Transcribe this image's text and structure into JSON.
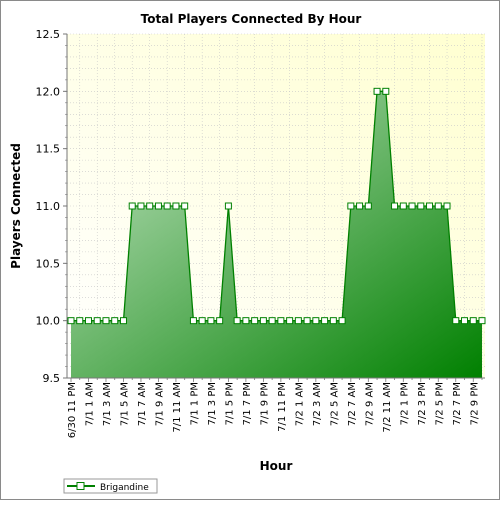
{
  "chart_data": {
    "type": "area",
    "title": "Total Players Connected By Hour",
    "xlabel": "Hour",
    "ylabel": "Players Connected",
    "ylim": [
      9.5,
      12.5
    ],
    "yticks": [
      "9.5",
      "10.0",
      "10.5",
      "11.0",
      "11.5",
      "12.0",
      "12.5"
    ],
    "grid": true,
    "legend_position": "bottom-left",
    "x_tick_labels": [
      "6/30 11 PM",
      "7/1 1 AM",
      "7/1 3 AM",
      "7/1 5 AM",
      "7/1 7 AM",
      "7/1 9 AM",
      "7/1 11 AM",
      "7/1 1 PM",
      "7/1 3 PM",
      "7/1 5 PM",
      "7/1 7 PM",
      "7/1 9 PM",
      "7/1 11 PM",
      "7/2 1 AM",
      "7/2 3 AM",
      "7/2 5 AM",
      "7/2 7 AM",
      "7/2 9 AM",
      "7/2 11 AM",
      "7/2 1 PM",
      "7/2 3 PM",
      "7/2 5 PM",
      "7/2 7 PM",
      "7/2 9 PM"
    ],
    "series": [
      {
        "name": "Brigandine",
        "color": "#008000",
        "values": [
          10,
          10,
          10,
          10,
          10,
          10,
          10,
          11,
          11,
          11,
          11,
          11,
          11,
          11,
          10,
          10,
          10,
          10,
          11,
          10,
          10,
          10,
          10,
          10,
          10,
          10,
          10,
          10,
          10,
          10,
          10,
          10,
          11,
          11,
          11,
          12,
          12,
          11,
          11,
          11,
          11,
          11,
          11,
          11,
          10,
          10,
          10,
          10
        ]
      }
    ]
  }
}
